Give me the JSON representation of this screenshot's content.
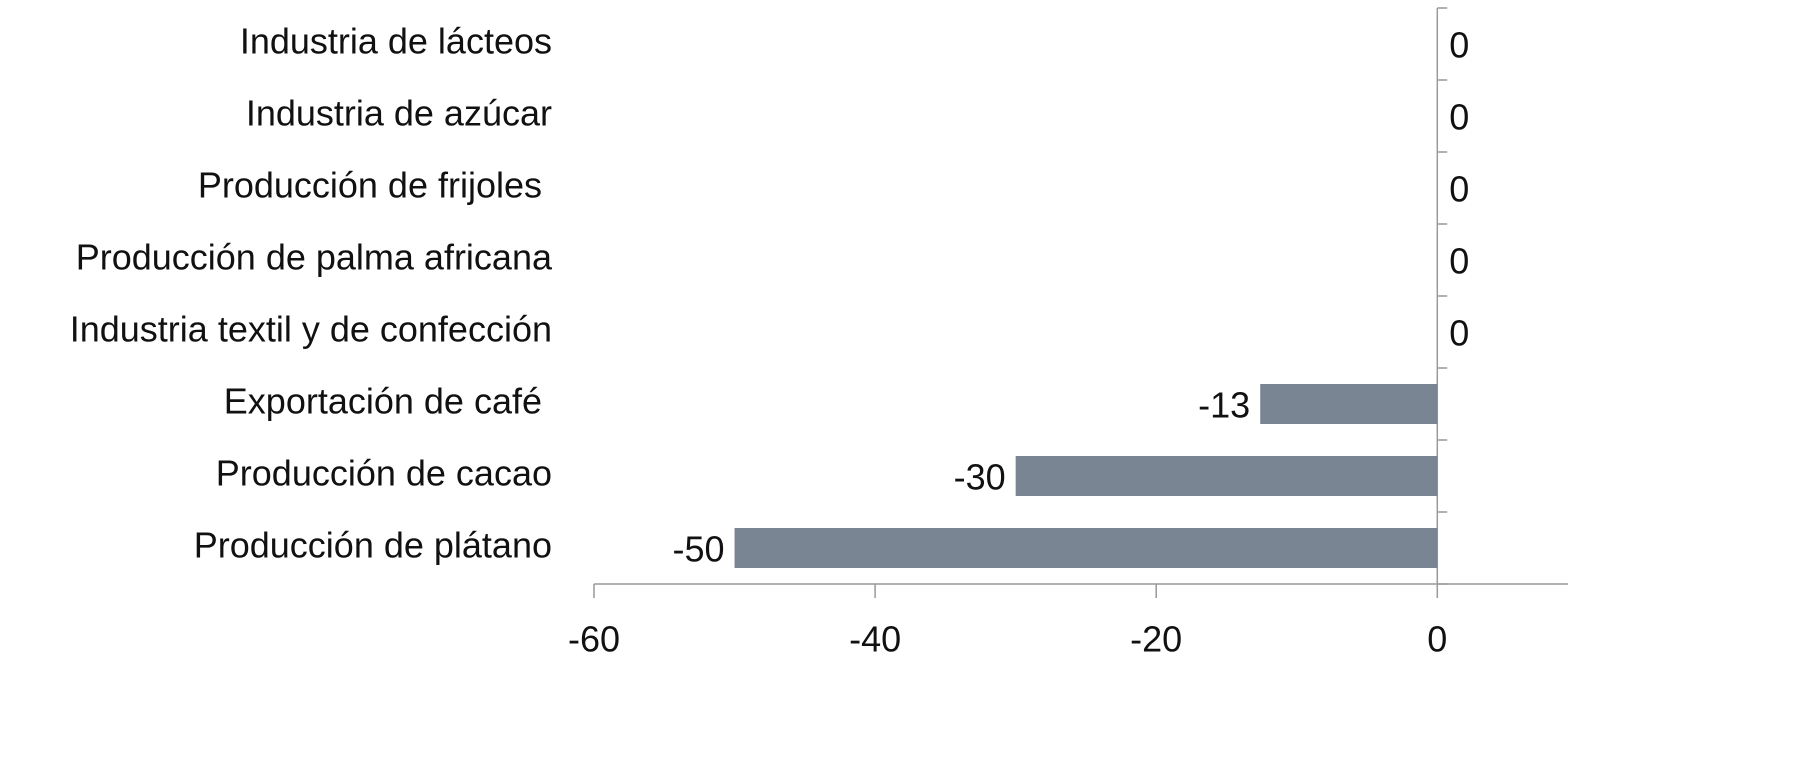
{
  "chart_data": {
    "type": "barh",
    "categories": [
      "Industria de lácteos",
      "Industria de azúcar",
      "Producción de frijoles ",
      "Producción de palma africana",
      "Industria textil y de confección",
      "Exportación de café ",
      "Producción de cacao",
      "Producción de plátano"
    ],
    "values": [
      0,
      0,
      0,
      0,
      0,
      -12.6,
      -30,
      -50
    ],
    "value_labels": [
      "0",
      "0",
      "0",
      "0",
      "0",
      "-13",
      "-30",
      "-50"
    ],
    "color": "#7a8594",
    "xlim": [
      -60,
      9.3
    ],
    "xticks": [
      -60,
      -40,
      -20,
      0
    ]
  }
}
